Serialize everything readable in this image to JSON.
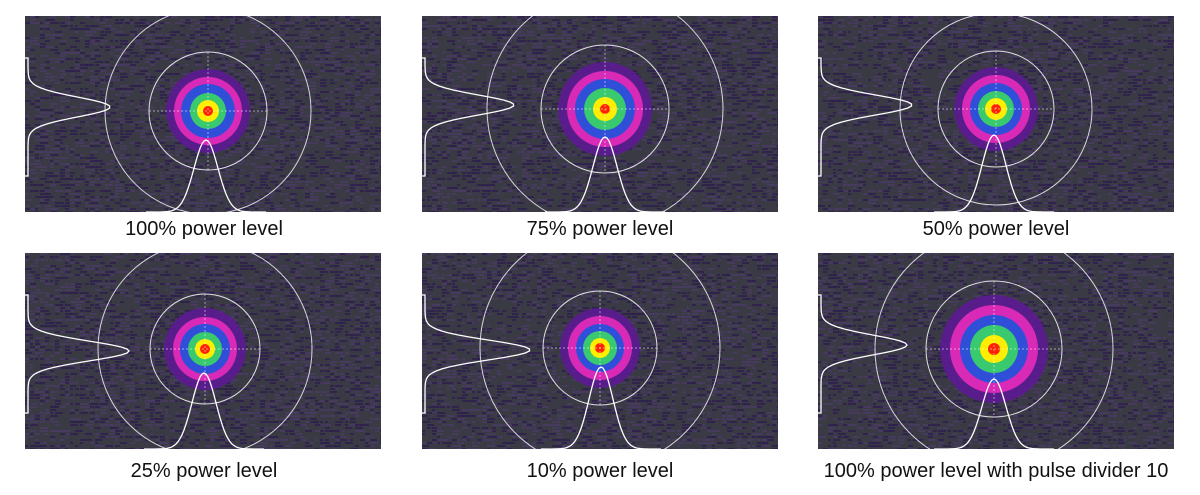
{
  "panels": [
    {
      "caption": "100% power level",
      "power_fraction": 1.0
    },
    {
      "caption": "75% power level",
      "power_fraction": 0.75
    },
    {
      "caption": "50% power level",
      "power_fraction": 0.5
    },
    {
      "caption": "25% power level",
      "power_fraction": 0.25
    },
    {
      "caption": "10% power level",
      "power_fraction": 0.1
    },
    {
      "caption": "100% power level with pulse divider 10",
      "power_fraction": 1.0
    }
  ],
  "colors": {
    "background_dark": "#3a3a44",
    "background_noise": "#2f1d4f",
    "overlay": "#ffffff",
    "center_red": "#ff2200",
    "yellow": "#ffee00",
    "green": "#39c96f",
    "blue": "#2f4fd8",
    "magenta": "#d92ab7",
    "purple": "#5c1b94"
  }
}
